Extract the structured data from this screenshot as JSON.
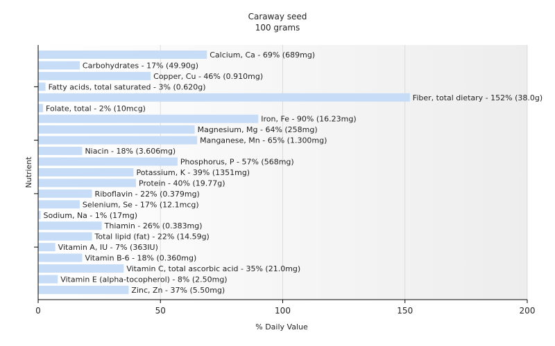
{
  "chart_data": {
    "type": "bar",
    "orientation": "horizontal",
    "title": "Caraway seed",
    "subtitle": "100 grams",
    "xlabel": "% Daily Value",
    "ylabel": "Nutrient",
    "xlim": [
      0,
      200
    ],
    "xticks": [
      0,
      50,
      100,
      150,
      200
    ],
    "grid": true,
    "bar_color": "#c6dcf7",
    "categories": [
      "Calcium, Ca",
      "Carbohydrates",
      "Copper, Cu",
      "Fatty acids, total saturated",
      "Fiber, total dietary",
      "Folate, total",
      "Iron, Fe",
      "Magnesium, Mg",
      "Manganese, Mn",
      "Niacin",
      "Phosphorus, P",
      "Potassium, K",
      "Protein",
      "Riboflavin",
      "Selenium, Se",
      "Sodium, Na",
      "Thiamin",
      "Total lipid (fat)",
      "Vitamin A, IU",
      "Vitamin B-6",
      "Vitamin C, total ascorbic acid",
      "Vitamin E (alpha-tocopherol)",
      "Zinc, Zn"
    ],
    "values": [
      69,
      17,
      46,
      3,
      152,
      2,
      90,
      64,
      65,
      18,
      57,
      39,
      40,
      22,
      17,
      1,
      26,
      22,
      7,
      18,
      35,
      8,
      37
    ],
    "labels": [
      "Calcium, Ca - 69% (689mg)",
      "Carbohydrates - 17% (49.90g)",
      "Copper, Cu - 46% (0.910mg)",
      "Fatty acids, total saturated - 3% (0.620g)",
      "Fiber, total dietary - 152% (38.0g)",
      "Folate, total - 2% (10mcg)",
      "Iron, Fe - 90% (16.23mg)",
      "Magnesium, Mg - 64% (258mg)",
      "Manganese, Mn - 65% (1.300mg)",
      "Niacin - 18% (3.606mg)",
      "Phosphorus, P - 57% (568mg)",
      "Potassium, K - 39% (1351mg)",
      "Protein - 40% (19.77g)",
      "Riboflavin - 22% (0.379mg)",
      "Selenium, Se - 17% (12.1mcg)",
      "Sodium, Na - 1% (17mg)",
      "Thiamin - 26% (0.383mg)",
      "Total lipid (fat) - 22% (14.59g)",
      "Vitamin A, IU - 7% (363IU)",
      "Vitamin B-6 - 18% (0.360mg)",
      "Vitamin C, total ascorbic acid - 35% (21.0mg)",
      "Vitamin E (alpha-tocopherol) - 8% (2.50mg)",
      "Zinc, Zn - 37% (5.50mg)"
    ]
  }
}
